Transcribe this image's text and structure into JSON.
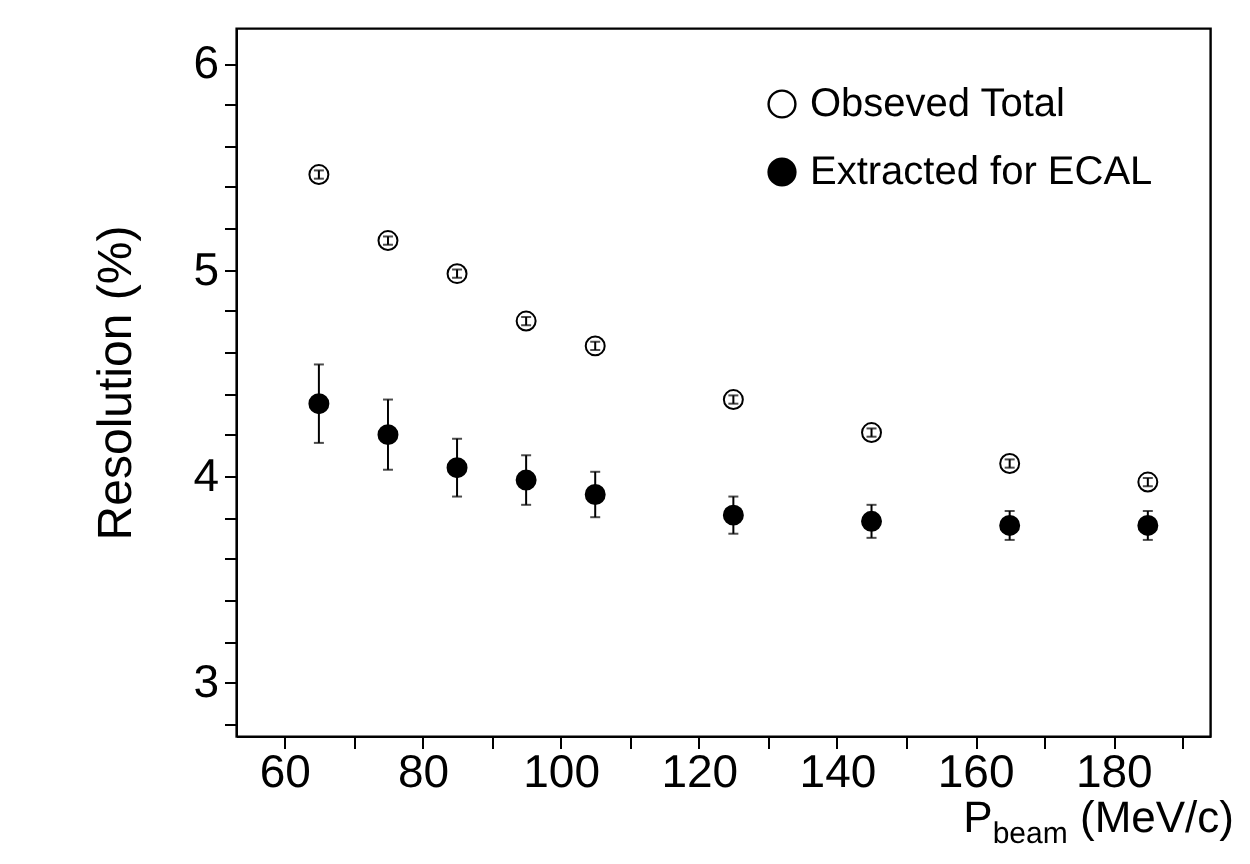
{
  "chart_data": {
    "type": "scatter",
    "xlabel": "P$_{beam}$ (MeV/c)",
    "ylabel": "Resolution (%)",
    "x": [
      65,
      75,
      85,
      95,
      105,
      125,
      145,
      165,
      185
    ],
    "series": [
      {
        "name": "Obseved Total",
        "color": "#ffffff",
        "values": [
          5.46,
          5.14,
          4.98,
          4.75,
          4.63,
          4.37,
          4.21,
          4.06,
          3.97
        ],
        "errors": [
          0.02,
          0.02,
          0.02,
          0.02,
          0.02,
          0.02,
          0.02,
          0.02,
          0.02
        ]
      },
      {
        "name": "Extracted for ECAL",
        "color": "#000000",
        "values": [
          4.35,
          4.2,
          4.04,
          3.98,
          3.91,
          3.81,
          3.78,
          3.76,
          3.76
        ],
        "errors": [
          0.19,
          0.17,
          0.14,
          0.12,
          0.11,
          0.09,
          0.08,
          0.07,
          0.07
        ]
      }
    ],
    "xlim": [
      53,
      194
    ],
    "ylim": [
      2.74,
      6.17
    ],
    "xticks": [
      60,
      {
        "value": 70,
        "label": null
      },
      80,
      {
        "value": 90,
        "label": null
      },
      100,
      {
        "value": 110,
        "label": null
      },
      120,
      {
        "value": 130,
        "label": null
      },
      140,
      {
        "value": 150,
        "label": null
      },
      160,
      {
        "value": 170,
        "label": null
      },
      180,
      {
        "value": 190,
        "label": null
      }
    ],
    "yticks": [
      {
        "value": 2.8,
        "label": null
      },
      3,
      {
        "value": 3.2,
        "label": null
      },
      {
        "value": 3.4,
        "label": null
      },
      {
        "value": 3.6,
        "label": null
      },
      {
        "value": 3.8,
        "label": null
      },
      4,
      {
        "value": 4.2,
        "label": null
      },
      {
        "value": 4.4,
        "label": null
      },
      {
        "value": 4.6,
        "label": null
      },
      {
        "value": 4.8,
        "label": null
      },
      5,
      {
        "value": 5.2,
        "label": null
      },
      {
        "value": 5.4,
        "label": null
      },
      {
        "value": 5.6,
        "label": null
      },
      {
        "value": 5.8,
        "label": null
      },
      6
    ],
    "marker": "circle",
    "legend": "top right",
    "grid": false
  }
}
